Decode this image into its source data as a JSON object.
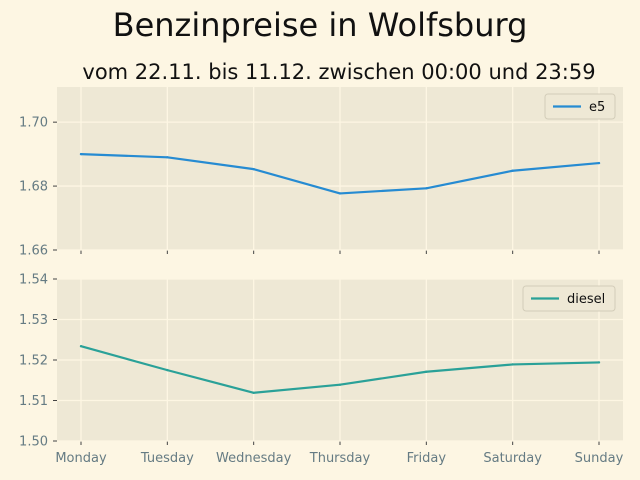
{
  "chart_data": {
    "type": "line",
    "title": "Benzinpreise in Wolfsburg",
    "subtitle": "vom 22.11. bis 11.12. zwischen 00:00 und 23:59",
    "categories": [
      "Monday",
      "Tuesday",
      "Wednesday",
      "Thursday",
      "Friday",
      "Saturday",
      "Sunday"
    ],
    "colors": {
      "e5": "#268bd2",
      "diesel": "#2aa198",
      "panel_bg": "#eee8d5",
      "page_bg": "#fdf6e3"
    },
    "grid": true,
    "panels": [
      {
        "series": [
          {
            "name": "e5",
            "values": [
              1.69,
              1.689,
              1.6853,
              1.6777,
              1.6793,
              1.6848,
              1.6872
            ]
          }
        ],
        "ylim": [
          1.66,
          1.711
        ],
        "yticks": [
          "1.66",
          "1.68",
          "1.70"
        ],
        "legend": "top-right",
        "show_xtick_labels": false
      },
      {
        "series": [
          {
            "name": "diesel",
            "values": [
              1.5234,
              1.5175,
              1.5119,
              1.5139,
              1.5171,
              1.5189,
              1.5194
            ]
          }
        ],
        "ylim": [
          1.5,
          1.54
        ],
        "yticks": [
          "1.50",
          "1.51",
          "1.52",
          "1.53",
          "1.54"
        ],
        "legend": "top-right",
        "show_xtick_labels": true
      }
    ]
  }
}
